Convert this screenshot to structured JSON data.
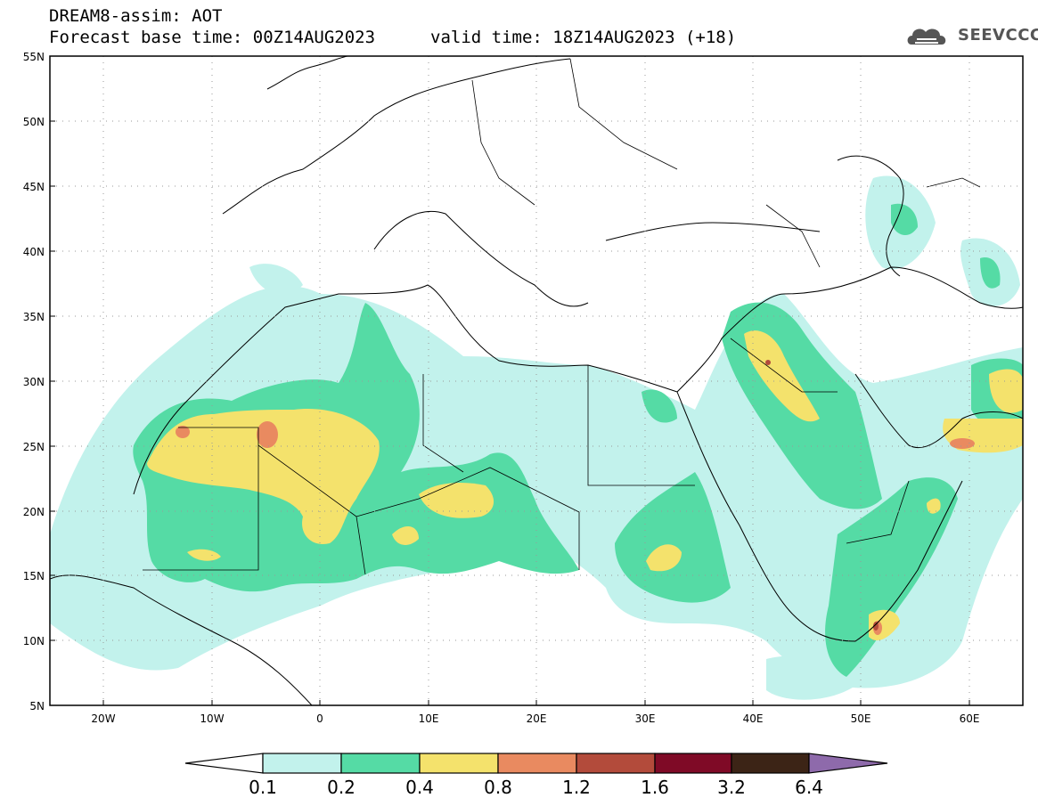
{
  "title": {
    "line1": "DREAM8-assim: AOT",
    "line2": "Forecast base time: 00Z14AUG2023",
    "valid": "valid time: 18Z14AUG2023 (+18)"
  },
  "logo": {
    "text": "SEEVCCC",
    "icon": "cloud-icon"
  },
  "map": {
    "lat_labels": [
      "55N",
      "50N",
      "45N",
      "40N",
      "35N",
      "30N",
      "25N",
      "20N",
      "15N",
      "10N",
      "5N"
    ],
    "lon_labels": [
      "20W",
      "10W",
      "0",
      "10E",
      "20E",
      "30E",
      "40E",
      "50E",
      "60E"
    ],
    "lon_range": [
      -25,
      65
    ],
    "lat_range": [
      5,
      55
    ]
  },
  "colorbar": {
    "levels": [
      "0.1",
      "0.2",
      "0.4",
      "0.8",
      "1.2",
      "1.6",
      "3.2",
      "6.4"
    ],
    "colors": [
      "#ffffff",
      "#c2f2ec",
      "#55dba5",
      "#f4e26c",
      "#e98a60",
      "#b34b3b",
      "#7f0a26",
      "#3c2416",
      "#8e6aab"
    ]
  }
}
